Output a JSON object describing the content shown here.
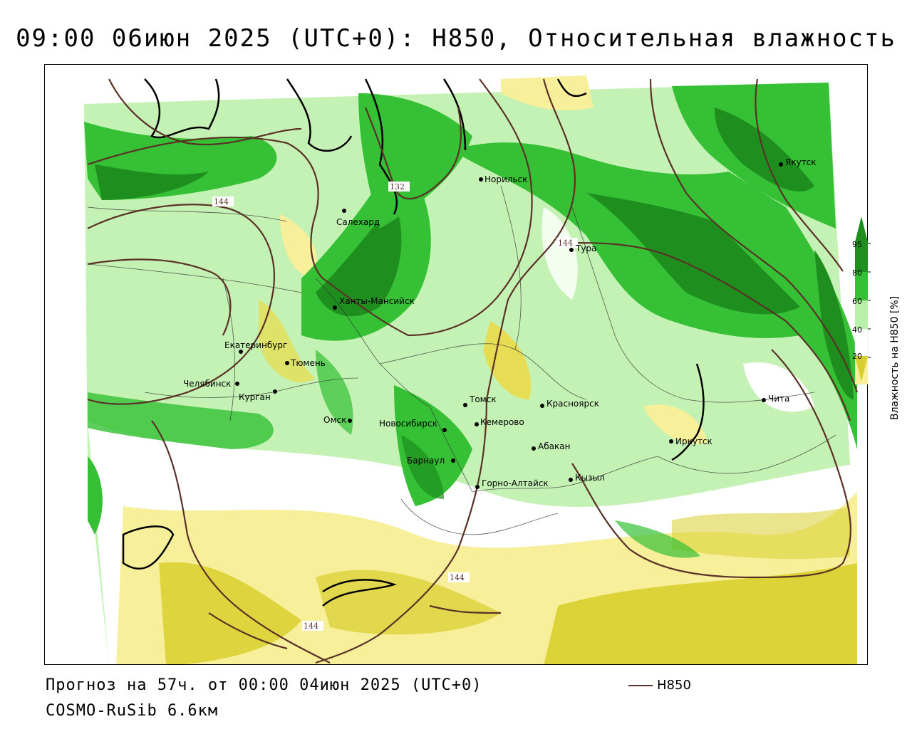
{
  "title": "09:00 06июн 2025 (UTC+0): H850, Относительная влажность",
  "footer": {
    "forecast": "Прогноз на 57ч. от 00:00 04июн 2025 (UTC+0)",
    "model": "COSMO-RuSib 6.6км"
  },
  "legend": {
    "title": "Влажность на Н850 [%]",
    "ticks": [
      "95",
      "80",
      "60",
      "40",
      "20"
    ],
    "colors": {
      "c95": "#1e8f1e",
      "c80": "#35c035",
      "c60": "#b7f0a8",
      "c40": "#ffffff",
      "c20": "#f7ef9a",
      "c0": "#d8cf2e"
    },
    "isoline_label": "H850",
    "isoline_color": "#5a3126"
  },
  "isolines": {
    "label_144": "144",
    "label_132": "132"
  },
  "cities": {
    "norilsk": "Норильск",
    "salekhard": "Салехард",
    "tura": "Тура",
    "yakutsk": "Якутск",
    "khanty": "Ханты-Мансийск",
    "ekaterinburg": "Екатеринбург",
    "tyumen": "Тюмень",
    "chelyabinsk": "Челябинск",
    "kurgan": "Курган",
    "omsk": "Омск",
    "novosibirsk": "Новосибирск",
    "tomsk": "Томск",
    "kemerovo": "Кемерово",
    "krasnoyarsk": "Красноярск",
    "abakan": "Абакан",
    "barnaul": "Барнаул",
    "gorno": "Горно-Алтайск",
    "kyzyl": "Кызыл",
    "irkutsk": "Иркутск",
    "chita": "Чита"
  }
}
